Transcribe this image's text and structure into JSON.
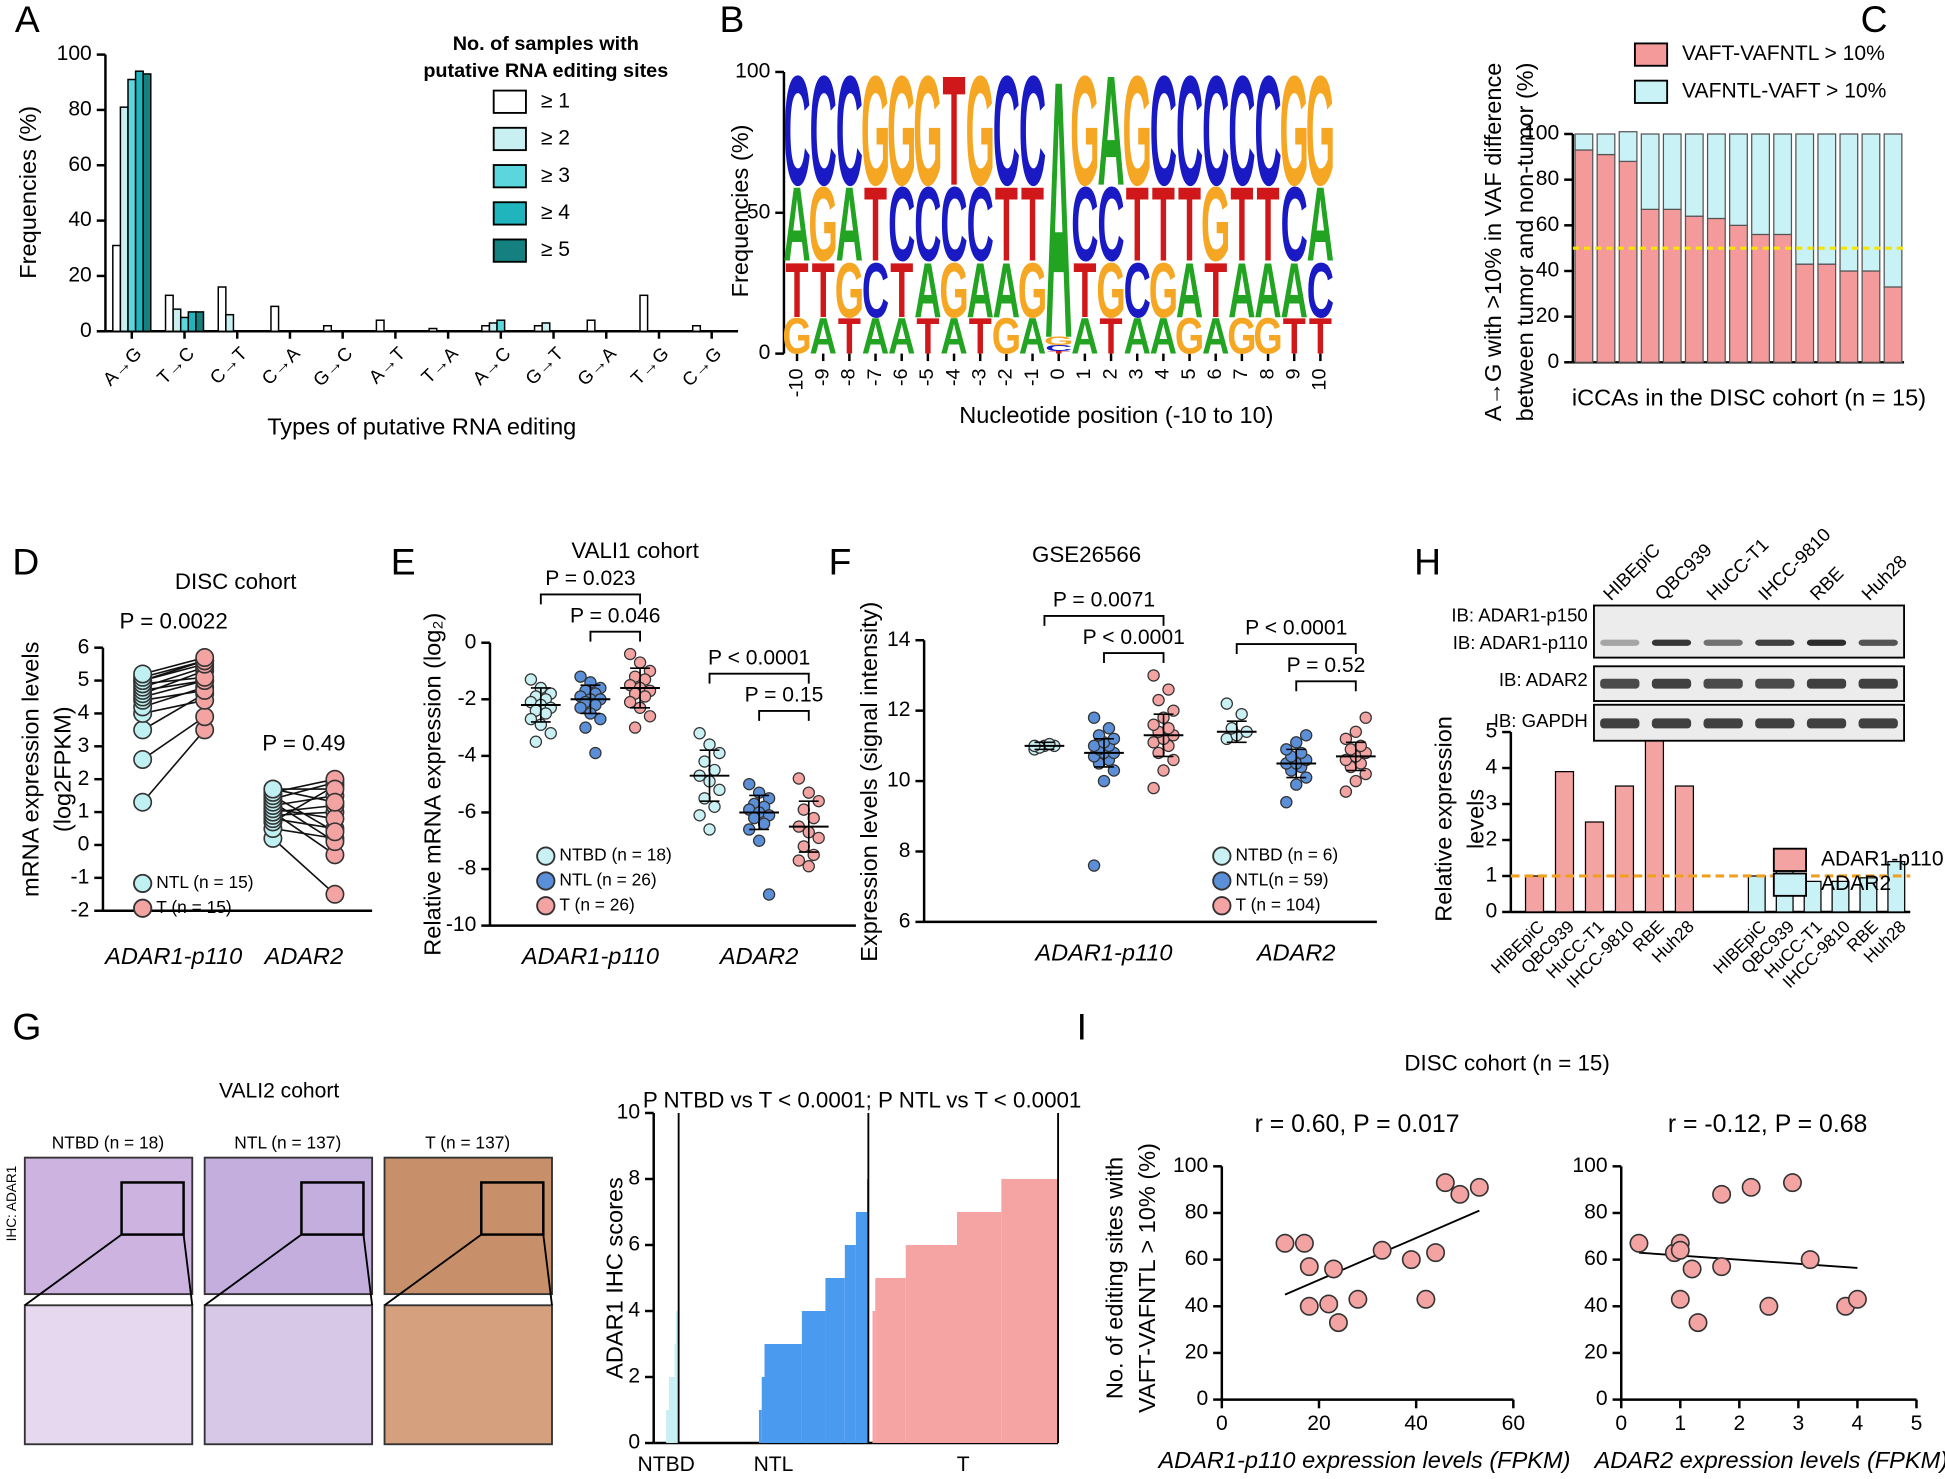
{
  "chart_data": [
    {
      "type": "grouped_bar",
      "panel": "A",
      "xlabel": "Types of putative RNA editing",
      "ylabel": "Frequencies (%)",
      "legend_title": [
        "No. of samples with",
        "putative RNA editing sites"
      ],
      "categories": [
        "A→G",
        "T→C",
        "C→T",
        "C→A",
        "G→C",
        "A→T",
        "T→A",
        "A→C",
        "G→T",
        "G→A",
        "T→G",
        "C→G"
      ],
      "series": [
        {
          "name": "≥ 1",
          "color": "#ffffff",
          "values": [
            31,
            13,
            16,
            9,
            2,
            4,
            1,
            2,
            2,
            4,
            13,
            2
          ]
        },
        {
          "name": "≥ 2",
          "color": "#c8f0f3",
          "values": [
            81,
            8,
            6,
            0,
            0,
            0,
            0,
            3,
            3,
            0,
            0,
            0
          ]
        },
        {
          "name": "≥ 3",
          "color": "#5cd6dd",
          "values": [
            91,
            5,
            0,
            0,
            0,
            0,
            0,
            4,
            0,
            0,
            0,
            0
          ]
        },
        {
          "name": "≥ 4",
          "color": "#20b5bd",
          "values": [
            94,
            7,
            0,
            0,
            0,
            0,
            0,
            0,
            0,
            0,
            0,
            0
          ]
        },
        {
          "name": "≥ 5",
          "color": "#14807f",
          "values": [
            93,
            7,
            0,
            0,
            0,
            0,
            0,
            0,
            0,
            0,
            0,
            0
          ]
        }
      ],
      "ylim": [
        0,
        100
      ],
      "yticks": [
        0,
        20,
        40,
        60,
        80,
        100
      ]
    },
    {
      "type": "logo",
      "panel": "B",
      "xlabel": "Nucleotide position (-10 to 10)",
      "ylabel": "Frequencies (%)",
      "positions": [
        -10,
        -9,
        -8,
        -7,
        -6,
        -5,
        -4,
        -3,
        -2,
        -1,
        0,
        1,
        2,
        3,
        4,
        5,
        6,
        7,
        8,
        9,
        10
      ],
      "series": [
        {
          "name": "A",
          "color": "#22a322",
          "values": [
            27,
            13,
            27,
            13,
            13,
            20,
            13,
            20,
            20,
            13,
            94,
            13,
            40,
            13,
            13,
            20,
            13,
            20,
            20,
            20,
            27
          ]
        },
        {
          "name": "C",
          "color": "#1a1ac4",
          "values": [
            40,
            40,
            40,
            20,
            27,
            27,
            27,
            27,
            40,
            40,
            2,
            27,
            27,
            20,
            40,
            40,
            40,
            40,
            40,
            27,
            20
          ]
        },
        {
          "name": "G",
          "color": "#f5a623",
          "values": [
            13,
            27,
            20,
            40,
            40,
            40,
            20,
            40,
            13,
            20,
            3,
            40,
            20,
            40,
            20,
            13,
            27,
            13,
            13,
            40,
            40
          ]
        },
        {
          "name": "T",
          "color": "#d0181a",
          "values": [
            20,
            20,
            13,
            27,
            20,
            13,
            40,
            13,
            27,
            27,
            1,
            20,
            13,
            27,
            27,
            27,
            20,
            27,
            27,
            13,
            13
          ]
        }
      ],
      "ylim": [
        0,
        100
      ],
      "yticks": [
        0,
        50,
        100
      ]
    },
    {
      "type": "stacked_bar",
      "panel": "C",
      "xlabel": "iCCAs in the DISC cohort (n = 15)",
      "ylabel": [
        "A→G with >10% in VAF difference",
        "between tumor and non-tumor (%)"
      ],
      "series": [
        {
          "name": "VAFT-VAFNTL > 10%",
          "color": "#f49a9a",
          "values": [
            93,
            91,
            88,
            67,
            67,
            64,
            63,
            60,
            56,
            56,
            43,
            43,
            40,
            40,
            33
          ]
        },
        {
          "name": "VAFNTL-VAFT > 10%",
          "color": "#c8f2f6",
          "values": [
            7,
            9,
            13,
            33,
            33,
            36,
            37,
            40,
            44,
            44,
            57,
            57,
            60,
            60,
            67
          ]
        }
      ],
      "reference_line": 50,
      "reference_color": "#f5e400",
      "ylim": [
        0,
        100
      ],
      "yticks": [
        0,
        20,
        40,
        60,
        80,
        100
      ]
    },
    {
      "type": "paired",
      "panel": "D",
      "title": "DISC cohort",
      "ylabel": [
        "mRNA expression levels",
        "(log2FPKM)"
      ],
      "categories": [
        "ADAR1-p110",
        "ADAR2"
      ],
      "annotations": [
        "P = 0.0022",
        "P = 0.49"
      ],
      "series": [
        {
          "name": "NTL (n = 15)",
          "color": "#bff0f2",
          "values": [
            [
              1.3,
              2.6,
              3.5,
              4.0,
              4.2,
              4.4,
              4.5,
              4.6,
              4.7,
              4.8,
              4.9,
              5.0,
              5.0,
              5.1,
              5.2
            ],
            [
              0.2,
              0.5,
              0.7,
              0.8,
              0.9,
              1.0,
              1.0,
              1.1,
              1.2,
              1.3,
              1.4,
              1.5,
              1.6,
              1.7,
              1.7
            ]
          ]
        },
        {
          "name": "T (n = 15)",
          "color": "#f4a3a3",
          "values": [
            [
              3.5,
              3.9,
              4.6,
              4.4,
              4.8,
              4.7,
              5.0,
              5.3,
              5.0,
              5.4,
              5.1,
              5.5,
              5.6,
              5.6,
              5.7
            ],
            [
              -1.5,
              0.2,
              1.8,
              0.5,
              1.0,
              1.2,
              -0.3,
              0.8,
              1.5,
              0.1,
              1.9,
              0.4,
              2.0,
              1.7,
              1.3
            ]
          ]
        }
      ],
      "ylim": [
        -2,
        6
      ],
      "yticks": [
        -2,
        -1,
        0,
        1,
        2,
        3,
        4,
        5,
        6
      ]
    },
    {
      "type": "dot_strip",
      "panel": "E",
      "title": "VALI1 cohort",
      "ylabel": "Relative mRNA expression (log₂)",
      "categories": [
        "ADAR1-p110",
        "ADAR2"
      ],
      "series": [
        {
          "name": "NTBD (n = 18)",
          "color": "#c9f1f4",
          "values": [
            [
              -1.3,
              -1.6,
              -1.8,
              -1.9,
              -2.0,
              -2.1,
              -2.2,
              -2.3,
              -2.4,
              -2.5,
              -2.7,
              -2.9,
              -3.2,
              -3.5
            ],
            [
              -3.2,
              -3.6,
              -3.9,
              -4.2,
              -4.5,
              -4.7,
              -4.9,
              -5.2,
              -5.5,
              -5.8,
              -6.1,
              -6.6
            ]
          ],
          "mean": [
            -2.2,
            -4.7
          ],
          "sd": [
            0.6,
            0.9
          ]
        },
        {
          "name": "NTL (n = 26)",
          "color": "#5b8fd8",
          "values": [
            [
              -1.2,
              -1.4,
              -1.6,
              -1.7,
              -1.8,
              -1.9,
              -2.0,
              -2.0,
              -2.1,
              -2.2,
              -2.3,
              -2.5,
              -2.7,
              -3.0,
              -3.9
            ],
            [
              -5.0,
              -5.3,
              -5.5,
              -5.7,
              -5.8,
              -5.9,
              -6.0,
              -6.1,
              -6.2,
              -6.4,
              -6.6,
              -7.0,
              -8.9
            ]
          ],
          "mean": [
            -2.0,
            -6.0
          ],
          "sd": [
            0.5,
            0.6
          ]
        },
        {
          "name": "T (n = 26)",
          "color": "#f4a3a3",
          "values": [
            [
              -0.4,
              -0.7,
              -1.0,
              -1.2,
              -1.3,
              -1.5,
              -1.6,
              -1.7,
              -1.8,
              -1.9,
              -2.1,
              -2.3,
              -2.6,
              -3.0
            ],
            [
              -4.8,
              -5.3,
              -5.6,
              -5.9,
              -6.2,
              -6.5,
              -6.7,
              -6.9,
              -7.2,
              -7.5,
              -7.7,
              -7.9
            ]
          ],
          "mean": [
            -1.6,
            -6.5
          ],
          "sd": [
            0.7,
            0.9
          ]
        }
      ],
      "comparisons": [
        {
          "category": 0,
          "between": [
            0,
            2
          ],
          "label": "P = 0.023"
        },
        {
          "category": 0,
          "between": [
            1,
            2
          ],
          "label": "P = 0.046"
        },
        {
          "category": 1,
          "between": [
            0,
            2
          ],
          "label": "P < 0.0001"
        },
        {
          "category": 1,
          "between": [
            1,
            2
          ],
          "label": "P = 0.15"
        }
      ],
      "ylim": [
        -10,
        0
      ],
      "yticks": [
        -10,
        -8,
        -6,
        -4,
        -2,
        0
      ]
    },
    {
      "type": "dot_strip",
      "panel": "F",
      "title": "GSE26566",
      "ylabel": "Expression levels (signal intensity)",
      "categories": [
        "ADAR1-p110",
        "ADAR2"
      ],
      "series": [
        {
          "name": "NTBD (n = 6)",
          "color": "#c9f1f4",
          "values": [
            [
              10.9,
              11.0,
              11.0,
              10.95,
              11.05,
              11.0
            ],
            [
              11.2,
              11.3,
              11.4,
              11.5,
              11.9,
              12.2
            ]
          ],
          "mean": [
            11.0,
            11.4
          ],
          "sd": [
            0.1,
            0.3
          ]
        },
        {
          "name": "NTL(n = 59)",
          "color": "#5b8fd8",
          "values": [
            [
              7.6,
              10.0,
              10.3,
              10.5,
              10.6,
              10.7,
              10.8,
              10.8,
              10.9,
              11.0,
              11.0,
              11.1,
              11.2,
              11.3,
              11.5,
              11.8
            ],
            [
              9.4,
              9.9,
              10.1,
              10.3,
              10.4,
              10.5,
              10.5,
              10.6,
              10.7,
              10.8,
              10.9,
              11.1,
              11.3
            ]
          ],
          "mean": [
            10.8,
            10.5
          ],
          "sd": [
            0.4,
            0.4
          ]
        },
        {
          "name": "T (n = 104)",
          "color": "#f4a3a3",
          "values": [
            [
              9.8,
              10.3,
              10.6,
              10.8,
              11.0,
              11.1,
              11.2,
              11.3,
              11.4,
              11.5,
              11.6,
              11.8,
              12.0,
              12.3,
              12.6,
              13.0
            ],
            [
              9.7,
              10.0,
              10.2,
              10.4,
              10.5,
              10.6,
              10.7,
              10.8,
              10.9,
              11.0,
              11.2,
              11.4,
              11.8
            ]
          ],
          "mean": [
            11.3,
            10.7
          ],
          "sd": [
            0.6,
            0.4
          ]
        }
      ],
      "comparisons": [
        {
          "category": 0,
          "between": [
            0,
            2
          ],
          "label": "P = 0.0071"
        },
        {
          "category": 0,
          "between": [
            1,
            2
          ],
          "label": "P < 0.0001"
        },
        {
          "category": 1,
          "between": [
            0,
            2
          ],
          "label": "P < 0.0001"
        },
        {
          "category": 1,
          "between": [
            1,
            2
          ],
          "label": "P = 0.52"
        }
      ],
      "ylim": [
        6,
        14
      ],
      "yticks": [
        6,
        8,
        10,
        12,
        14
      ]
    },
    {
      "type": "group_bar",
      "panel": "H",
      "ylabel": [
        "Relative expression",
        "levels"
      ],
      "series": [
        {
          "name": "ADAR1-p110",
          "color": "#f4a3a3",
          "categories": [
            "HIBEpiC",
            "QBC939",
            "HuCC-T1",
            "IHCC-9810",
            "RBE",
            "Huh28"
          ],
          "values": [
            1,
            3.9,
            2.5,
            3.5,
            4.8,
            3.5
          ]
        },
        {
          "name": "ADAR2",
          "color": "#c8f2f6",
          "categories": [
            "HIBEpiC",
            "QBC939",
            "HuCC-T1",
            "IHCC-9810",
            "RBE",
            "Huh28"
          ],
          "values": [
            1,
            1.2,
            0.85,
            0.85,
            0.95,
            1.4
          ]
        }
      ],
      "reference_line": 1,
      "reference_color": "#f0a020",
      "ylim": [
        0,
        5
      ],
      "yticks": [
        0,
        1,
        2,
        3,
        4,
        5
      ]
    },
    {
      "type": "waterfall",
      "title": "P NTBD vs T < 0.0001; P NTL vs T < 0.0001",
      "ylabel": "ADAR1 IHC scores",
      "groups": [
        {
          "name": "NTBD",
          "color": "#c6f0f4",
          "scores": [
            0,
            1,
            2,
            3,
            4
          ],
          "counts": [
            9,
            2,
            4,
            1,
            2
          ]
        },
        {
          "name": "NTL",
          "color": "#4a9af0",
          "scores": [
            0,
            1,
            2,
            3,
            4,
            5,
            6,
            7,
            8
          ],
          "counts": [
            58,
            2,
            2,
            27,
            17,
            14,
            8,
            8,
            1
          ]
        },
        {
          "name": "T",
          "color": "#f6a3a3",
          "scores": [
            0,
            4,
            5,
            6,
            7,
            8
          ],
          "counts": [
            3,
            2,
            22,
            37,
            32,
            41
          ]
        }
      ],
      "ylim": [
        0,
        10
      ],
      "yticks": [
        0,
        2,
        4,
        6,
        8,
        10
      ]
    },
    {
      "type": "scatter",
      "panel": "I",
      "title": "r = 0.60, P = 0.017",
      "xlabel": "ADAR1-p110 expression levels (FPKM)",
      "ylabel": [
        "No. of editing sites with",
        "VAFT-VAFNTL > 10% (%)"
      ],
      "color": "#f4a3a3",
      "x": [
        13,
        17,
        18,
        18,
        23,
        22,
        24,
        28,
        33,
        39,
        42,
        44,
        46,
        49,
        53
      ],
      "y": [
        67,
        67,
        57,
        40,
        56,
        41,
        33,
        43,
        64,
        60,
        43,
        63,
        93,
        88,
        91
      ],
      "fit": {
        "slope": 0.9,
        "intercept": 33.3
      },
      "xlim": [
        0,
        60
      ],
      "xticks": [
        0,
        20,
        40,
        60
      ],
      "ylim": [
        0,
        100
      ],
      "yticks": [
        0,
        20,
        40,
        60,
        80,
        100
      ]
    },
    {
      "type": "scatter",
      "title": "r = -0.12, P = 0.68",
      "xlabel": "ADAR2 expression levels (FPKM)",
      "color": "#f4a3a3",
      "x": [
        0.3,
        0.9,
        1.0,
        1.0,
        1.2,
        1.3,
        1.7,
        1.7,
        2.2,
        2.5,
        2.9,
        3.2,
        3.8,
        4.0,
        1.0
      ],
      "y": [
        67,
        63,
        67,
        43,
        56,
        33,
        88,
        57,
        91,
        40,
        93,
        60,
        40,
        43,
        64
      ],
      "fit": {
        "slope": -1.76,
        "intercept": 63.5
      },
      "xlim": [
        0,
        5
      ],
      "xticks": [
        0,
        1,
        2,
        3,
        4,
        5
      ],
      "ylim": [
        0,
        100
      ],
      "yticks": [
        0,
        20,
        40,
        60,
        80,
        100
      ]
    }
  ],
  "cohort_title": "DISC cohort (n = 15)",
  "ihc": {
    "panel": "G",
    "title": "VALI2 cohort",
    "stain": "IHC: ADAR1",
    "columns": [
      "NTBD (n = 18)",
      "NTL (n = 137)",
      "T (n = 137)"
    ]
  },
  "blot": {
    "lanes": [
      "HIBEpiC",
      "QBC939",
      "HuCC-T1",
      "IHCC-9810",
      "RBE",
      "Huh28"
    ],
    "rows": [
      "IB: ADAR1-p150",
      "IB: ADAR1-p110",
      "IB: ADAR2",
      "IB: GAPDH"
    ]
  }
}
